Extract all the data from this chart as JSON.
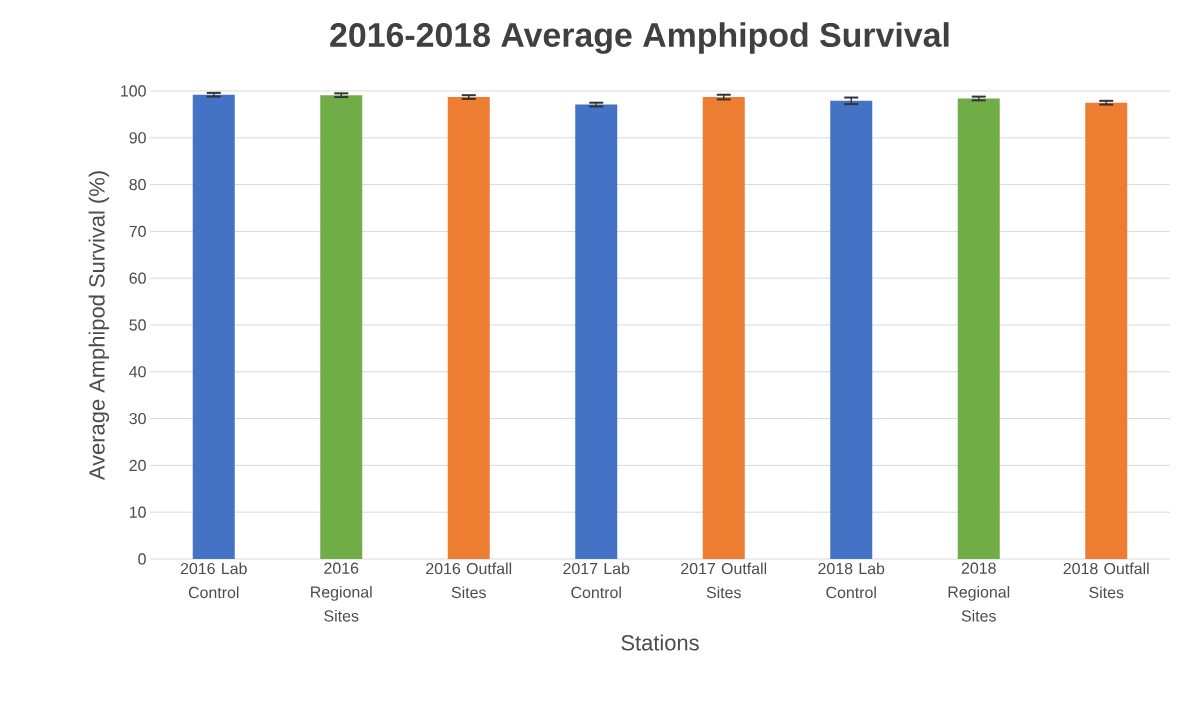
{
  "chart_data": {
    "type": "bar",
    "title": "2016-2018 Average Amphipod Survival",
    "xlabel": "Stations",
    "ylabel": "Average Amphipod  Survival (%)",
    "categories": [
      "2016 Lab Control",
      "2016 Regional Sites",
      "2016 Outfall Sites",
      "2017 Lab Control",
      "2017 Outfall Sites",
      "2018 Lab Control",
      "2018 Regional Sites",
      "2018 Outfall Sites"
    ],
    "values": [
      99.2,
      99.1,
      98.7,
      97.1,
      98.7,
      97.9,
      98.4,
      97.5
    ],
    "errors": [
      0.4,
      0.4,
      0.4,
      0.4,
      0.5,
      0.7,
      0.4,
      0.4
    ],
    "colors": [
      "#4472c4",
      "#70ad47",
      "#ed7d31",
      "#4472c4",
      "#ed7d31",
      "#4472c4",
      "#70ad47",
      "#ed7d31"
    ],
    "ylim": [
      0,
      100
    ],
    "yticks": [
      0,
      10,
      20,
      30,
      40,
      50,
      60,
      70,
      80,
      90,
      100
    ],
    "grid": "y"
  }
}
